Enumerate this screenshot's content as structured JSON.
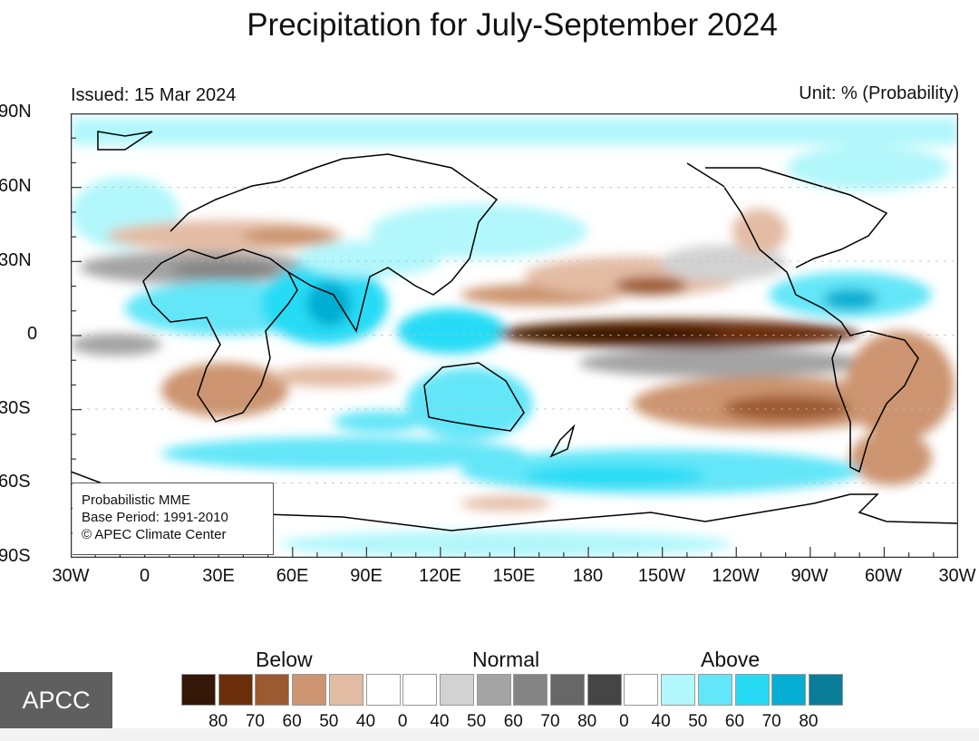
{
  "title": "Precipitation for July-September 2024",
  "issued": "Issued: 15 Mar 2024",
  "unit": "Unit: % (Probability)",
  "y_axis_labels": [
    "90N",
    "60N",
    "30N",
    "0",
    "30S",
    "60S",
    "90S"
  ],
  "x_axis_labels": [
    "30W",
    "0",
    "30E",
    "60E",
    "90E",
    "120E",
    "150E",
    "180",
    "150W",
    "120W",
    "90W",
    "60W",
    "30W"
  ],
  "info_box": {
    "line1": "Probabilistic MME",
    "line2": "Base Period: 1991-2010",
    "line3": "© APEC Climate Center"
  },
  "logo": "APCC",
  "legend": {
    "below_title": "Below",
    "normal_title": "Normal",
    "above_title": "Above",
    "colors": [
      "#341706",
      "#6b2e0b",
      "#9c5a30",
      "#cc9470",
      "#e3bca4",
      "#ffffff",
      "#ffffff",
      "#d2d2d2",
      "#a3a3a3",
      "#848484",
      "#676767",
      "#454545",
      "#ffffff",
      "#b2f7fb",
      "#63e6f8",
      "#27dbf5",
      "#05aed2",
      "#0a7d99"
    ],
    "labels": [
      "80",
      "70",
      "60",
      "50",
      "40",
      "0",
      "40",
      "50",
      "60",
      "70",
      "80",
      "0",
      "40",
      "50",
      "60",
      "70",
      "80"
    ]
  }
}
